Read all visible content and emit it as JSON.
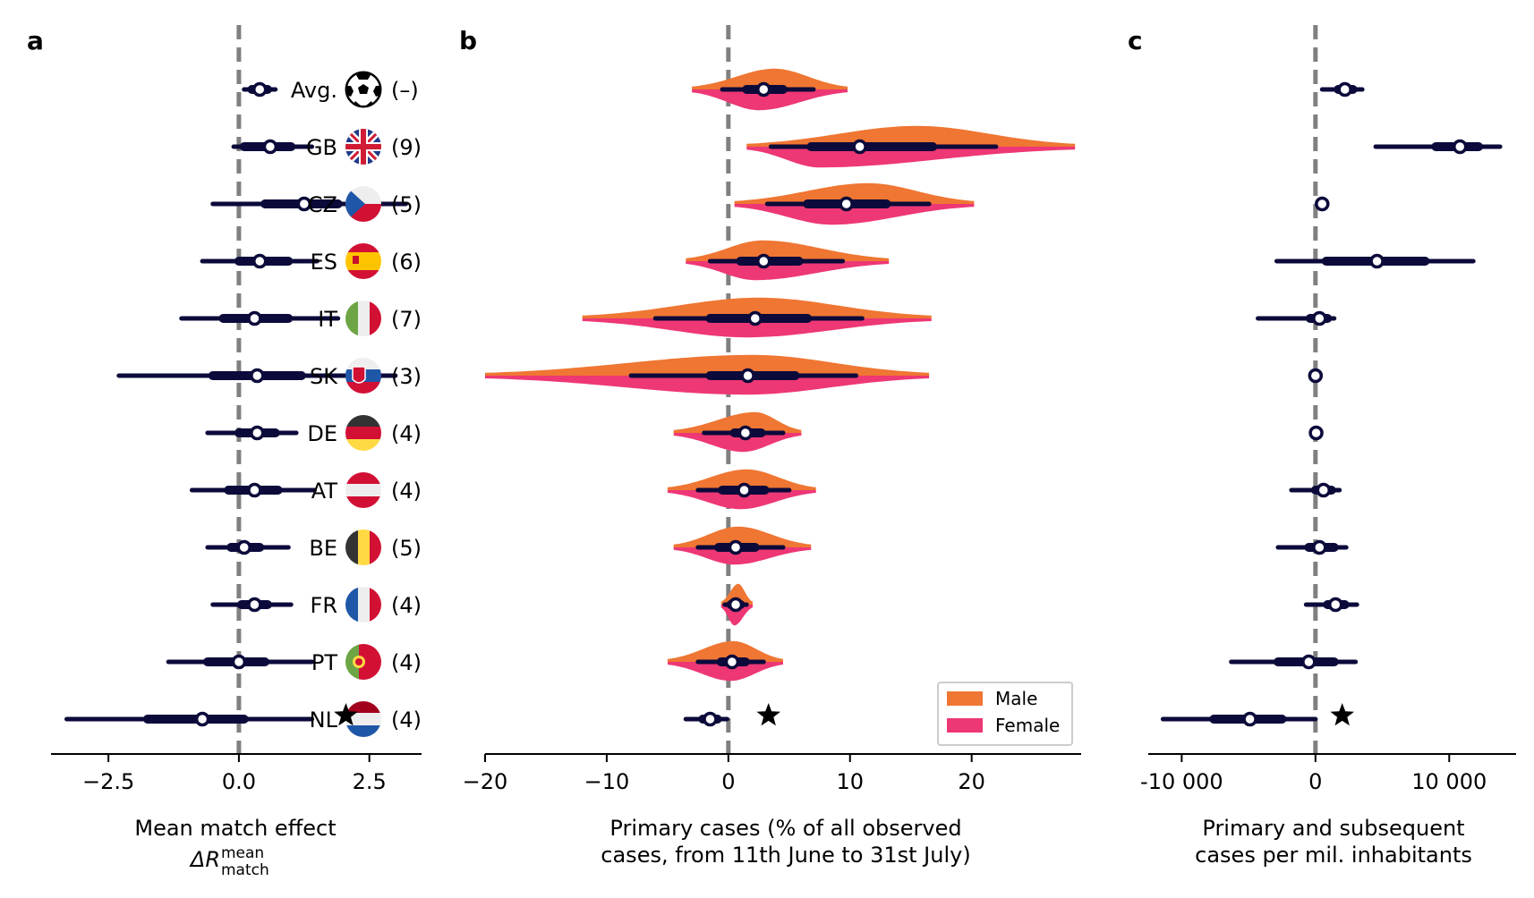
{
  "colors": {
    "navy": "#0b0a3a",
    "male": "#ef7633",
    "female": "#ee3775",
    "zero_line": "#808080"
  },
  "panel_labels": {
    "a": "a",
    "b": "b",
    "c": "c"
  },
  "countries": [
    {
      "code": "Avg.",
      "count": "(–)",
      "icon": "football-icon"
    },
    {
      "code": "GB",
      "count": "(9)",
      "icon": "flag-gb-icon"
    },
    {
      "code": "CZ",
      "count": "(5)",
      "icon": "flag-cz-icon"
    },
    {
      "code": "ES",
      "count": "(6)",
      "icon": "flag-es-icon"
    },
    {
      "code": "IT",
      "count": "(7)",
      "icon": "flag-it-icon"
    },
    {
      "code": "SK",
      "count": "(3)",
      "icon": "flag-sk-icon"
    },
    {
      "code": "DE",
      "count": "(4)",
      "icon": "flag-de-icon"
    },
    {
      "code": "AT",
      "count": "(4)",
      "icon": "flag-at-icon"
    },
    {
      "code": "BE",
      "count": "(5)",
      "icon": "flag-be-icon"
    },
    {
      "code": "FR",
      "count": "(4)",
      "icon": "flag-fr-icon"
    },
    {
      "code": "PT",
      "count": "(4)",
      "icon": "flag-pt-icon"
    },
    {
      "code": "NL",
      "count": "(4)",
      "icon": "flag-nl-icon"
    }
  ],
  "chart_data": [
    {
      "panel": "a",
      "type": "interval",
      "xlabel": "Mean match effect",
      "xlabel_math": "ΔR",
      "xlabel_sup": "mean",
      "xlabel_sub": "match",
      "xlim": [
        -3.6,
        3.5
      ],
      "xticks": [
        -2.5,
        0.0,
        2.5
      ],
      "xtick_labels": [
        "−2.5",
        "0.0",
        "2.5"
      ],
      "rows": [
        {
          "name": "Avg.",
          "median": 0.4,
          "q25": 0.25,
          "q75": 0.55,
          "lo": 0.1,
          "hi": 0.7
        },
        {
          "name": "GB",
          "median": 0.6,
          "q25": 0.1,
          "q75": 1.0,
          "lo": -0.1,
          "hi": 1.4
        },
        {
          "name": "CZ",
          "median": 1.25,
          "q25": 0.5,
          "q75": 1.9,
          "lo": -0.5,
          "hi": 3.2
        },
        {
          "name": "ES",
          "median": 0.4,
          "q25": 0.0,
          "q75": 0.95,
          "lo": -0.7,
          "hi": 1.5
        },
        {
          "name": "IT",
          "median": 0.3,
          "q25": -0.3,
          "q75": 0.95,
          "lo": -1.1,
          "hi": 1.9
        },
        {
          "name": "SK",
          "median": 0.35,
          "q25": -0.5,
          "q75": 1.2,
          "lo": -2.3,
          "hi": 3.0
        },
        {
          "name": "DE",
          "median": 0.35,
          "q25": 0.0,
          "q75": 0.7,
          "lo": -0.6,
          "hi": 1.1
        },
        {
          "name": "AT",
          "median": 0.3,
          "q25": -0.2,
          "q75": 0.75,
          "lo": -0.9,
          "hi": 1.45
        },
        {
          "name": "BE",
          "median": 0.1,
          "q25": -0.15,
          "q75": 0.4,
          "lo": -0.6,
          "hi": 0.95
        },
        {
          "name": "FR",
          "median": 0.3,
          "q25": 0.05,
          "q75": 0.55,
          "lo": -0.5,
          "hi": 1.0
        },
        {
          "name": "PT",
          "median": 0.0,
          "q25": -0.6,
          "q75": 0.5,
          "lo": -1.35,
          "hi": 1.4
        },
        {
          "name": "NL",
          "median": -0.7,
          "q25": -1.75,
          "q75": 0.1,
          "lo": -3.3,
          "hi": 1.4,
          "star": 2.05
        }
      ]
    },
    {
      "panel": "b",
      "type": "violin",
      "xlabel": "Primary cases (% of all observed\ncases, from 11th June to 31st July)",
      "xlim": [
        -20,
        29
      ],
      "xticks": [
        -20,
        -10,
        0,
        10,
        20
      ],
      "xtick_labels": [
        "−20",
        "−10",
        "0",
        "10",
        "20"
      ],
      "legend": {
        "position": "lower right",
        "entries": [
          "Male",
          "Female"
        ]
      },
      "rows": [
        {
          "name": "Avg.",
          "median": 2.9,
          "q25": 1.5,
          "q75": 4.5,
          "lo": -0.5,
          "hi": 7.0,
          "min": -3.0,
          "max": 9.8,
          "male_mode": 3.8,
          "male_h": 22,
          "female_mode": 2.5,
          "female_h": 22
        },
        {
          "name": "GB",
          "median": 10.8,
          "q25": 6.8,
          "q75": 16.8,
          "lo": 3.5,
          "hi": 22.0,
          "min": 1.5,
          "max": 28.5,
          "male_mode": 15.5,
          "male_h": 22,
          "female_mode": 7.5,
          "female_h": 22
        },
        {
          "name": "CZ",
          "median": 9.7,
          "q25": 6.5,
          "q75": 13.0,
          "lo": 3.2,
          "hi": 16.5,
          "min": 0.5,
          "max": 20.2,
          "male_mode": 11.5,
          "male_h": 22,
          "female_mode": 8.5,
          "female_h": 22
        },
        {
          "name": "ES",
          "median": 2.9,
          "q25": 1.0,
          "q75": 5.8,
          "lo": -1.5,
          "hi": 9.4,
          "min": -3.5,
          "max": 13.2,
          "male_mode": 2.8,
          "male_h": 22,
          "female_mode": 2.2,
          "female_h": 20
        },
        {
          "name": "IT",
          "median": 2.2,
          "q25": -1.5,
          "q75": 6.5,
          "lo": -6.0,
          "hi": 11.0,
          "min": -12.0,
          "max": 16.7,
          "male_mode": 2.5,
          "male_h": 22,
          "female_mode": 1.5,
          "female_h": 20
        },
        {
          "name": "SK",
          "median": 1.6,
          "q25": -1.5,
          "q75": 5.5,
          "lo": -8.0,
          "hi": 10.5,
          "min": -20.0,
          "max": 16.5,
          "male_mode": 2.0,
          "male_h": 22,
          "female_mode": 1.5,
          "female_h": 20
        },
        {
          "name": "DE",
          "median": 1.4,
          "q25": 0.5,
          "q75": 2.7,
          "lo": -2.0,
          "hi": 4.5,
          "min": -4.5,
          "max": 6.0,
          "male_mode": 2.2,
          "male_h": 22,
          "female_mode": 1.2,
          "female_h": 20
        },
        {
          "name": "AT",
          "median": 1.3,
          "q25": -0.5,
          "q75": 3.0,
          "lo": -2.5,
          "hi": 5.0,
          "min": -5.0,
          "max": 7.2,
          "male_mode": 1.5,
          "male_h": 22,
          "female_mode": 1.0,
          "female_h": 20
        },
        {
          "name": "BE",
          "median": 0.6,
          "q25": -0.8,
          "q75": 2.2,
          "lo": -2.5,
          "hi": 4.5,
          "min": -4.5,
          "max": 6.8,
          "male_mode": 0.8,
          "male_h": 22,
          "female_mode": 0.5,
          "female_h": 18
        },
        {
          "name": "FR",
          "median": 0.6,
          "q25": 0.2,
          "q75": 1.0,
          "lo": -0.3,
          "hi": 1.5,
          "min": -0.6,
          "max": 2.0,
          "male_mode": 0.8,
          "male_h": 22,
          "female_mode": 0.5,
          "female_h": 22
        },
        {
          "name": "PT",
          "median": 0.3,
          "q25": -0.6,
          "q75": 1.4,
          "lo": -2.5,
          "hi": 2.9,
          "min": -5.0,
          "max": 4.5,
          "male_mode": 0.4,
          "male_h": 22,
          "female_mode": 0.2,
          "female_h": 20
        },
        {
          "name": "NL",
          "median": -1.5,
          "q25": -2.1,
          "q75": -0.9,
          "lo": -3.5,
          "hi": -0.1,
          "star": 3.3
        }
      ]
    },
    {
      "panel": "c",
      "type": "interval",
      "xlabel": "Primary and subsequent\ncases per mil. inhabitants",
      "xlim": [
        -12500,
        15000
      ],
      "xticks": [
        -10000,
        0,
        10000
      ],
      "xtick_labels": [
        "-10 000",
        "0",
        "10 000"
      ],
      "rows": [
        {
          "name": "Avg.",
          "median": 2200,
          "q25": 1700,
          "q75": 2800,
          "lo": 500,
          "hi": 3500
        },
        {
          "name": "GB",
          "median": 10800,
          "q25": 9000,
          "q75": 12200,
          "lo": 4500,
          "hi": 13800
        },
        {
          "name": "CZ",
          "median": 500,
          "q25": 400,
          "q75": 600,
          "lo": 200,
          "hi": 800
        },
        {
          "name": "ES",
          "median": 4600,
          "q25": 800,
          "q75": 8200,
          "lo": -2900,
          "hi": 11800
        },
        {
          "name": "IT",
          "median": 300,
          "q25": -400,
          "q75": 900,
          "lo": -4300,
          "hi": 1400
        },
        {
          "name": "SK",
          "median": 0,
          "q25": -50,
          "q75": 50,
          "lo": -100,
          "hi": 100
        },
        {
          "name": "DE",
          "median": 50,
          "q25": 0,
          "q75": 100,
          "lo": -50,
          "hi": 150
        },
        {
          "name": "AT",
          "median": 600,
          "q25": 0,
          "q75": 1200,
          "lo": -1800,
          "hi": 1800
        },
        {
          "name": "BE",
          "median": 300,
          "q25": -500,
          "q75": 1400,
          "lo": -2800,
          "hi": 2300
        },
        {
          "name": "FR",
          "median": 1500,
          "q25": 900,
          "q75": 2200,
          "lo": -700,
          "hi": 3100
        },
        {
          "name": "PT",
          "median": -500,
          "q25": -2800,
          "q75": 1400,
          "lo": -6300,
          "hi": 3000
        },
        {
          "name": "NL",
          "median": -4900,
          "q25": -7600,
          "q75": -2500,
          "lo": -11400,
          "hi": 0,
          "star": 2000
        }
      ]
    }
  ]
}
